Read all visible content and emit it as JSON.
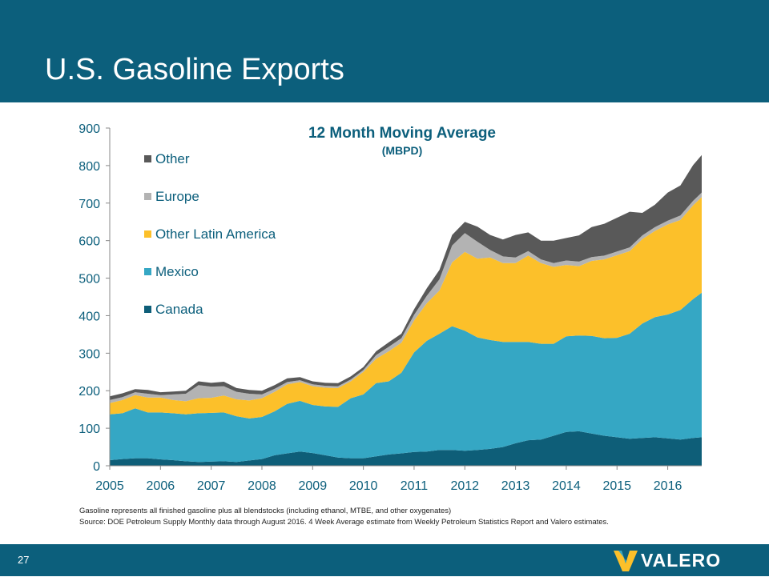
{
  "slide": {
    "title": "U.S. Gasoline Exports",
    "page_number": "27",
    "logo_text": "VALERO",
    "footnote": "Gasoline represents all finished gasoline plus all blendstocks (including ethanol, MTBE, and other oxygenates)",
    "source": "Source:  DOE Petroleum Supply Monthly data through August 2016.  4 Week Average estimate from Weekly Petroleum Statistics Report and Valero estimates."
  },
  "colors": {
    "header": "#0c5f7c",
    "Canada": "#0e5e78",
    "Mexico": "#35a7c4",
    "Other Latin America": "#fcc02a",
    "Europe": "#b3b3b3",
    "Other": "#595959",
    "title": "#0c5f7c",
    "tick": "#0c5f7c"
  },
  "chart_data": {
    "type": "area",
    "stacked": true,
    "title": "12 Month Moving Average",
    "subtitle": "(MBPD)",
    "xlabel": "",
    "ylabel": "",
    "x_tick_labels": [
      "2005",
      "2006",
      "2007",
      "2008",
      "2009",
      "2010",
      "2011",
      "2012",
      "2013",
      "2014",
      "2015",
      "2016"
    ],
    "xlim": [
      2005.0,
      2016.67
    ],
    "ylim": [
      0,
      900
    ],
    "y_ticks": [
      0,
      100,
      200,
      300,
      400,
      500,
      600,
      700,
      800,
      900
    ],
    "legend_position": "top-left",
    "x": [
      2005.0,
      2005.25,
      2005.5,
      2005.75,
      2006.0,
      2006.25,
      2006.5,
      2006.75,
      2007.0,
      2007.25,
      2007.5,
      2007.75,
      2008.0,
      2008.25,
      2008.5,
      2008.75,
      2009.0,
      2009.25,
      2009.5,
      2009.75,
      2010.0,
      2010.25,
      2010.5,
      2010.75,
      2011.0,
      2011.25,
      2011.5,
      2011.75,
      2012.0,
      2012.25,
      2012.5,
      2012.75,
      2013.0,
      2013.25,
      2013.5,
      2013.75,
      2014.0,
      2014.25,
      2014.5,
      2014.75,
      2015.0,
      2015.25,
      2015.5,
      2015.75,
      2016.0,
      2016.25,
      2016.5,
      2016.67
    ],
    "series": [
      {
        "name": "Canada",
        "values": [
          15,
          18,
          20,
          20,
          17,
          15,
          12,
          10,
          11,
          12,
          10,
          14,
          18,
          28,
          33,
          38,
          34,
          28,
          22,
          20,
          20,
          25,
          30,
          33,
          37,
          38,
          42,
          42,
          40,
          42,
          45,
          50,
          60,
          68,
          70,
          80,
          90,
          92,
          86,
          80,
          76,
          72,
          74,
          76,
          73,
          70,
          74,
          76
        ]
      },
      {
        "name": "Mexico",
        "values": [
          122,
          122,
          133,
          122,
          125,
          125,
          125,
          130,
          130,
          130,
          122,
          112,
          112,
          117,
          132,
          135,
          128,
          130,
          135,
          160,
          170,
          195,
          195,
          215,
          265,
          295,
          310,
          330,
          320,
          300,
          290,
          280,
          270,
          262,
          255,
          245,
          255,
          255,
          260,
          260,
          265,
          280,
          305,
          320,
          330,
          345,
          370,
          385
        ]
      },
      {
        "name": "Other Latin America",
        "values": [
          30,
          35,
          35,
          40,
          40,
          35,
          35,
          40,
          40,
          45,
          45,
          48,
          50,
          52,
          52,
          50,
          50,
          50,
          50,
          45,
          60,
          65,
          80,
          80,
          85,
          100,
          115,
          170,
          210,
          210,
          220,
          210,
          210,
          230,
          215,
          205,
          190,
          185,
          200,
          210,
          220,
          220,
          225,
          230,
          240,
          240,
          250,
          255
        ]
      },
      {
        "name": "Europe",
        "values": [
          8,
          8,
          8,
          10,
          6,
          15,
          20,
          35,
          30,
          25,
          20,
          18,
          10,
          8,
          6,
          5,
          5,
          5,
          5,
          5,
          5,
          10,
          12,
          12,
          15,
          20,
          30,
          45,
          50,
          45,
          20,
          18,
          15,
          12,
          10,
          10,
          12,
          12,
          10,
          10,
          10,
          10,
          10,
          10,
          10,
          12,
          12,
          12
        ]
      },
      {
        "name": "Other",
        "values": [
          10,
          10,
          8,
          10,
          8,
          8,
          8,
          10,
          10,
          12,
          10,
          10,
          10,
          10,
          10,
          8,
          8,
          8,
          8,
          8,
          8,
          10,
          12,
          12,
          15,
          20,
          25,
          28,
          30,
          40,
          40,
          45,
          60,
          50,
          50,
          60,
          60,
          70,
          80,
          85,
          90,
          95,
          60,
          60,
          75,
          80,
          95,
          100
        ]
      }
    ]
  }
}
